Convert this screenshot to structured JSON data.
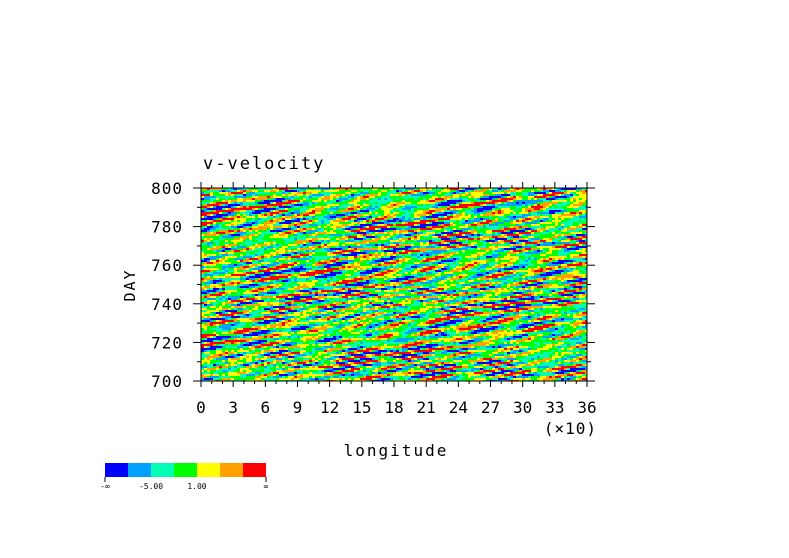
{
  "chart_data": {
    "type": "heatmap",
    "title": "v-velocity",
    "xlabel": "longitude",
    "ylabel": "DAY",
    "x_multiplier_label": "(×10)",
    "xlim": [
      0,
      36
    ],
    "ylim": [
      700,
      800
    ],
    "x_ticks": [
      "0",
      "3",
      "6",
      "9",
      "12",
      "15",
      "18",
      "21",
      "24",
      "27",
      "30",
      "33",
      "36"
    ],
    "y_ticks": [
      "700",
      "720",
      "740",
      "760",
      "780",
      "800"
    ],
    "colorbar": {
      "colors": [
        "#0000ff",
        "#00a0ff",
        "#00ffb4",
        "#00ff00",
        "#ffff00",
        "#ffa000",
        "#ff0000"
      ],
      "labels": [
        "-∞",
        "-5.00",
        "1.00",
        "∞"
      ]
    }
  }
}
